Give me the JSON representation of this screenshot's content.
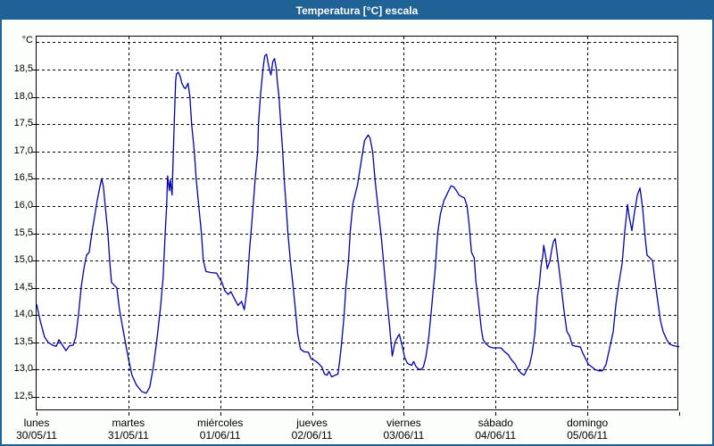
{
  "window": {
    "title": "Temperatura [°C] escala"
  },
  "colors": {
    "titlebar": "#1f6396",
    "frame": "#1f6396",
    "window_bg": "#fbfefb",
    "plot_bg": "#ffffff",
    "line": "#0000b2",
    "grid": "#000000",
    "text": "#000000"
  },
  "chart_data": {
    "type": "line",
    "title": "Temperatura [°C] escala",
    "xlabel": "",
    "ylabel": "°C",
    "grid": "dashed",
    "legend": "none",
    "xlim_days": [
      0,
      7
    ],
    "ylim": [
      12.24,
      19.104
    ],
    "y_grid_step": 0.5,
    "y_grid_min": 12.5,
    "y_grid_max": 19.0,
    "y_ticks": [
      {
        "v": 18.5,
        "label": "18,5"
      },
      {
        "v": 18.0,
        "label": "18,0"
      },
      {
        "v": 17.5,
        "label": "17,5"
      },
      {
        "v": 17.0,
        "label": "17,0"
      },
      {
        "v": 16.5,
        "label": "16,5"
      },
      {
        "v": 16.0,
        "label": "16,0"
      },
      {
        "v": 15.5,
        "label": "15,5"
      },
      {
        "v": 15.0,
        "label": "15,0"
      },
      {
        "v": 14.5,
        "label": "14,5"
      },
      {
        "v": 14.0,
        "label": "14,0"
      },
      {
        "v": 13.5,
        "label": "13,5"
      },
      {
        "v": 13.0,
        "label": "13,0"
      },
      {
        "v": 12.5,
        "label": "12,5"
      }
    ],
    "x_day_labels": [
      {
        "name": "lunes",
        "date": "30/05/11"
      },
      {
        "name": "martes",
        "date": "31/05/11"
      },
      {
        "name": "miércoles",
        "date": "01/06/11"
      },
      {
        "name": "jueves",
        "date": "02/06/11"
      },
      {
        "name": "viernes",
        "date": "03/06/11"
      },
      {
        "name": "sábado",
        "date": "04/06/11"
      },
      {
        "name": "domingo",
        "date": "05/06/11"
      }
    ],
    "series": [
      {
        "name": "Temperatura [°C]",
        "points": [
          [
            0,
            14.2
          ],
          [
            0.039,
            13.9
          ],
          [
            0.087,
            13.6
          ],
          [
            0.126,
            13.5
          ],
          [
            0.175,
            13.45
          ],
          [
            0.214,
            13.43
          ],
          [
            0.243,
            13.55
          ],
          [
            0.282,
            13.45
          ],
          [
            0.32,
            13.35
          ],
          [
            0.359,
            13.44
          ],
          [
            0.398,
            13.45
          ],
          [
            0.427,
            13.6
          ],
          [
            0.456,
            14.0
          ],
          [
            0.485,
            14.5
          ],
          [
            0.515,
            14.85
          ],
          [
            0.544,
            15.1
          ],
          [
            0.573,
            15.15
          ],
          [
            0.602,
            15.5
          ],
          [
            0.631,
            15.8
          ],
          [
            0.66,
            16.1
          ],
          [
            0.689,
            16.35
          ],
          [
            0.709,
            16.5
          ],
          [
            0.728,
            16.35
          ],
          [
            0.748,
            16.0
          ],
          [
            0.777,
            15.5
          ],
          [
            0.796,
            15.0
          ],
          [
            0.816,
            14.6
          ],
          [
            0.845,
            14.55
          ],
          [
            0.874,
            14.5
          ],
          [
            0.903,
            14.1
          ],
          [
            0.951,
            13.65
          ],
          [
            1.0,
            13.2
          ],
          [
            1.039,
            12.9
          ],
          [
            1.087,
            12.72
          ],
          [
            1.146,
            12.6
          ],
          [
            1.194,
            12.57
          ],
          [
            1.233,
            12.68
          ],
          [
            1.272,
            13.05
          ],
          [
            1.311,
            13.55
          ],
          [
            1.35,
            14.15
          ],
          [
            1.379,
            14.7
          ],
          [
            1.398,
            15.4
          ],
          [
            1.417,
            16.0
          ],
          [
            1.427,
            16.55
          ],
          [
            1.447,
            16.28
          ],
          [
            1.456,
            16.48
          ],
          [
            1.476,
            16.2
          ],
          [
            1.495,
            17.3
          ],
          [
            1.515,
            18.3
          ],
          [
            1.524,
            18.42
          ],
          [
            1.544,
            18.45
          ],
          [
            1.563,
            18.38
          ],
          [
            1.583,
            18.25
          ],
          [
            1.602,
            18.18
          ],
          [
            1.621,
            18.15
          ],
          [
            1.65,
            18.25
          ],
          [
            1.67,
            18.0
          ],
          [
            1.689,
            17.5
          ],
          [
            1.718,
            17.0
          ],
          [
            1.738,
            16.5
          ],
          [
            1.767,
            16.0
          ],
          [
            1.796,
            15.5
          ],
          [
            1.816,
            15.0
          ],
          [
            1.845,
            14.8
          ],
          [
            1.903,
            14.78
          ],
          [
            1.961,
            14.77
          ],
          [
            1.99,
            14.68
          ],
          [
            2.019,
            14.6
          ],
          [
            2.049,
            14.45
          ],
          [
            2.087,
            14.38
          ],
          [
            2.117,
            14.43
          ],
          [
            2.165,
            14.27
          ],
          [
            2.194,
            14.18
          ],
          [
            2.233,
            14.25
          ],
          [
            2.262,
            14.1
          ],
          [
            2.291,
            14.45
          ],
          [
            2.32,
            15.2
          ],
          [
            2.34,
            15.6
          ],
          [
            2.359,
            16.0
          ],
          [
            2.379,
            16.45
          ],
          [
            2.408,
            17.0
          ],
          [
            2.417,
            17.5
          ],
          [
            2.437,
            18.0
          ],
          [
            2.466,
            18.5
          ],
          [
            2.485,
            18.75
          ],
          [
            2.505,
            18.78
          ],
          [
            2.524,
            18.6
          ],
          [
            2.544,
            18.45
          ],
          [
            2.553,
            18.4
          ],
          [
            2.573,
            18.65
          ],
          [
            2.592,
            18.7
          ],
          [
            2.612,
            18.5
          ],
          [
            2.621,
            18.3
          ],
          [
            2.641,
            18.0
          ],
          [
            2.66,
            17.5
          ],
          [
            2.68,
            17.0
          ],
          [
            2.699,
            16.45
          ],
          [
            2.718,
            16.0
          ],
          [
            2.738,
            15.5
          ],
          [
            2.767,
            14.95
          ],
          [
            2.796,
            14.5
          ],
          [
            2.825,
            14.0
          ],
          [
            2.845,
            13.65
          ],
          [
            2.874,
            13.38
          ],
          [
            2.913,
            13.33
          ],
          [
            2.961,
            13.32
          ],
          [
            2.99,
            13.2
          ],
          [
            3.029,
            13.17
          ],
          [
            3.068,
            13.12
          ],
          [
            3.107,
            13.05
          ],
          [
            3.136,
            12.92
          ],
          [
            3.165,
            12.9
          ],
          [
            3.184,
            12.97
          ],
          [
            3.214,
            12.87
          ],
          [
            3.252,
            12.9
          ],
          [
            3.282,
            12.92
          ],
          [
            3.301,
            13.15
          ],
          [
            3.32,
            13.45
          ],
          [
            3.35,
            14.0
          ],
          [
            3.369,
            14.5
          ],
          [
            3.398,
            15.0
          ],
          [
            3.417,
            15.55
          ],
          [
            3.447,
            16.05
          ],
          [
            3.476,
            16.25
          ],
          [
            3.495,
            16.38
          ],
          [
            3.544,
            16.9
          ],
          [
            3.573,
            17.2
          ],
          [
            3.612,
            17.3
          ],
          [
            3.631,
            17.25
          ],
          [
            3.66,
            17.0
          ],
          [
            3.689,
            16.45
          ],
          [
            3.718,
            16.0
          ],
          [
            3.757,
            15.4
          ],
          [
            3.786,
            14.85
          ],
          [
            3.816,
            14.3
          ],
          [
            3.845,
            13.8
          ],
          [
            3.874,
            13.25
          ],
          [
            3.903,
            13.5
          ],
          [
            3.932,
            13.6
          ],
          [
            3.951,
            13.65
          ],
          [
            3.981,
            13.45
          ],
          [
            4.01,
            13.22
          ],
          [
            4.039,
            13.12
          ],
          [
            4.058,
            13.1
          ],
          [
            4.087,
            13.08
          ],
          [
            4.107,
            13.15
          ],
          [
            4.136,
            13.05
          ],
          [
            4.155,
            13.02
          ],
          [
            4.184,
            13.0
          ],
          [
            4.214,
            13.05
          ],
          [
            4.243,
            13.25
          ],
          [
            4.272,
            13.6
          ],
          [
            4.301,
            14.1
          ],
          [
            4.32,
            14.45
          ],
          [
            4.34,
            14.8
          ],
          [
            4.369,
            15.5
          ],
          [
            4.398,
            15.85
          ],
          [
            4.437,
            16.1
          ],
          [
            4.466,
            16.2
          ],
          [
            4.495,
            16.3
          ],
          [
            4.515,
            16.37
          ],
          [
            4.544,
            16.35
          ],
          [
            4.573,
            16.28
          ],
          [
            4.602,
            16.2
          ],
          [
            4.631,
            16.17
          ],
          [
            4.66,
            16.15
          ],
          [
            4.689,
            16.0
          ],
          [
            4.709,
            15.7
          ],
          [
            4.738,
            15.15
          ],
          [
            4.767,
            15.05
          ],
          [
            4.786,
            14.6
          ],
          [
            4.806,
            14.35
          ],
          [
            4.825,
            14.05
          ],
          [
            4.845,
            13.75
          ],
          [
            4.864,
            13.55
          ],
          [
            4.893,
            13.48
          ],
          [
            4.932,
            13.42
          ],
          [
            4.971,
            13.4
          ],
          [
            5.019,
            13.4
          ],
          [
            5.058,
            13.4
          ],
          [
            5.097,
            13.33
          ],
          [
            5.136,
            13.28
          ],
          [
            5.165,
            13.2
          ],
          [
            5.214,
            13.1
          ],
          [
            5.243,
            13.0
          ],
          [
            5.282,
            12.93
          ],
          [
            5.311,
            12.9
          ],
          [
            5.34,
            13.0
          ],
          [
            5.369,
            13.08
          ],
          [
            5.398,
            13.3
          ],
          [
            5.427,
            13.65
          ],
          [
            5.456,
            14.35
          ],
          [
            5.476,
            14.55
          ],
          [
            5.495,
            14.9
          ],
          [
            5.515,
            15.1
          ],
          [
            5.524,
            15.28
          ],
          [
            5.544,
            15.1
          ],
          [
            5.563,
            14.85
          ],
          [
            5.592,
            15.0
          ],
          [
            5.612,
            15.2
          ],
          [
            5.631,
            15.35
          ],
          [
            5.65,
            15.4
          ],
          [
            5.68,
            15.0
          ],
          [
            5.709,
            14.6
          ],
          [
            5.748,
            14.05
          ],
          [
            5.777,
            13.7
          ],
          [
            5.806,
            13.62
          ],
          [
            5.835,
            13.45
          ],
          [
            5.874,
            13.43
          ],
          [
            5.922,
            13.42
          ],
          [
            5.951,
            13.3
          ],
          [
            5.981,
            13.2
          ],
          [
            6.01,
            13.1
          ],
          [
            6.049,
            13.05
          ],
          [
            6.087,
            13.0
          ],
          [
            6.126,
            12.98
          ],
          [
            6.165,
            12.98
          ],
          [
            6.204,
            13.1
          ],
          [
            6.243,
            13.4
          ],
          [
            6.282,
            13.7
          ],
          [
            6.311,
            14.2
          ],
          [
            6.34,
            14.55
          ],
          [
            6.379,
            14.95
          ],
          [
            6.408,
            15.55
          ],
          [
            6.427,
            15.85
          ],
          [
            6.437,
            16.03
          ],
          [
            6.456,
            15.8
          ],
          [
            6.485,
            15.55
          ],
          [
            6.515,
            15.9
          ],
          [
            6.544,
            16.2
          ],
          [
            6.573,
            16.33
          ],
          [
            6.602,
            15.95
          ],
          [
            6.631,
            15.4
          ],
          [
            6.65,
            15.1
          ],
          [
            6.68,
            15.05
          ],
          [
            6.709,
            15.0
          ],
          [
            6.738,
            14.6
          ],
          [
            6.767,
            14.25
          ],
          [
            6.796,
            13.9
          ],
          [
            6.825,
            13.7
          ],
          [
            6.864,
            13.55
          ],
          [
            6.893,
            13.47
          ],
          [
            6.942,
            13.44
          ],
          [
            7.0,
            13.42
          ]
        ]
      }
    ]
  }
}
